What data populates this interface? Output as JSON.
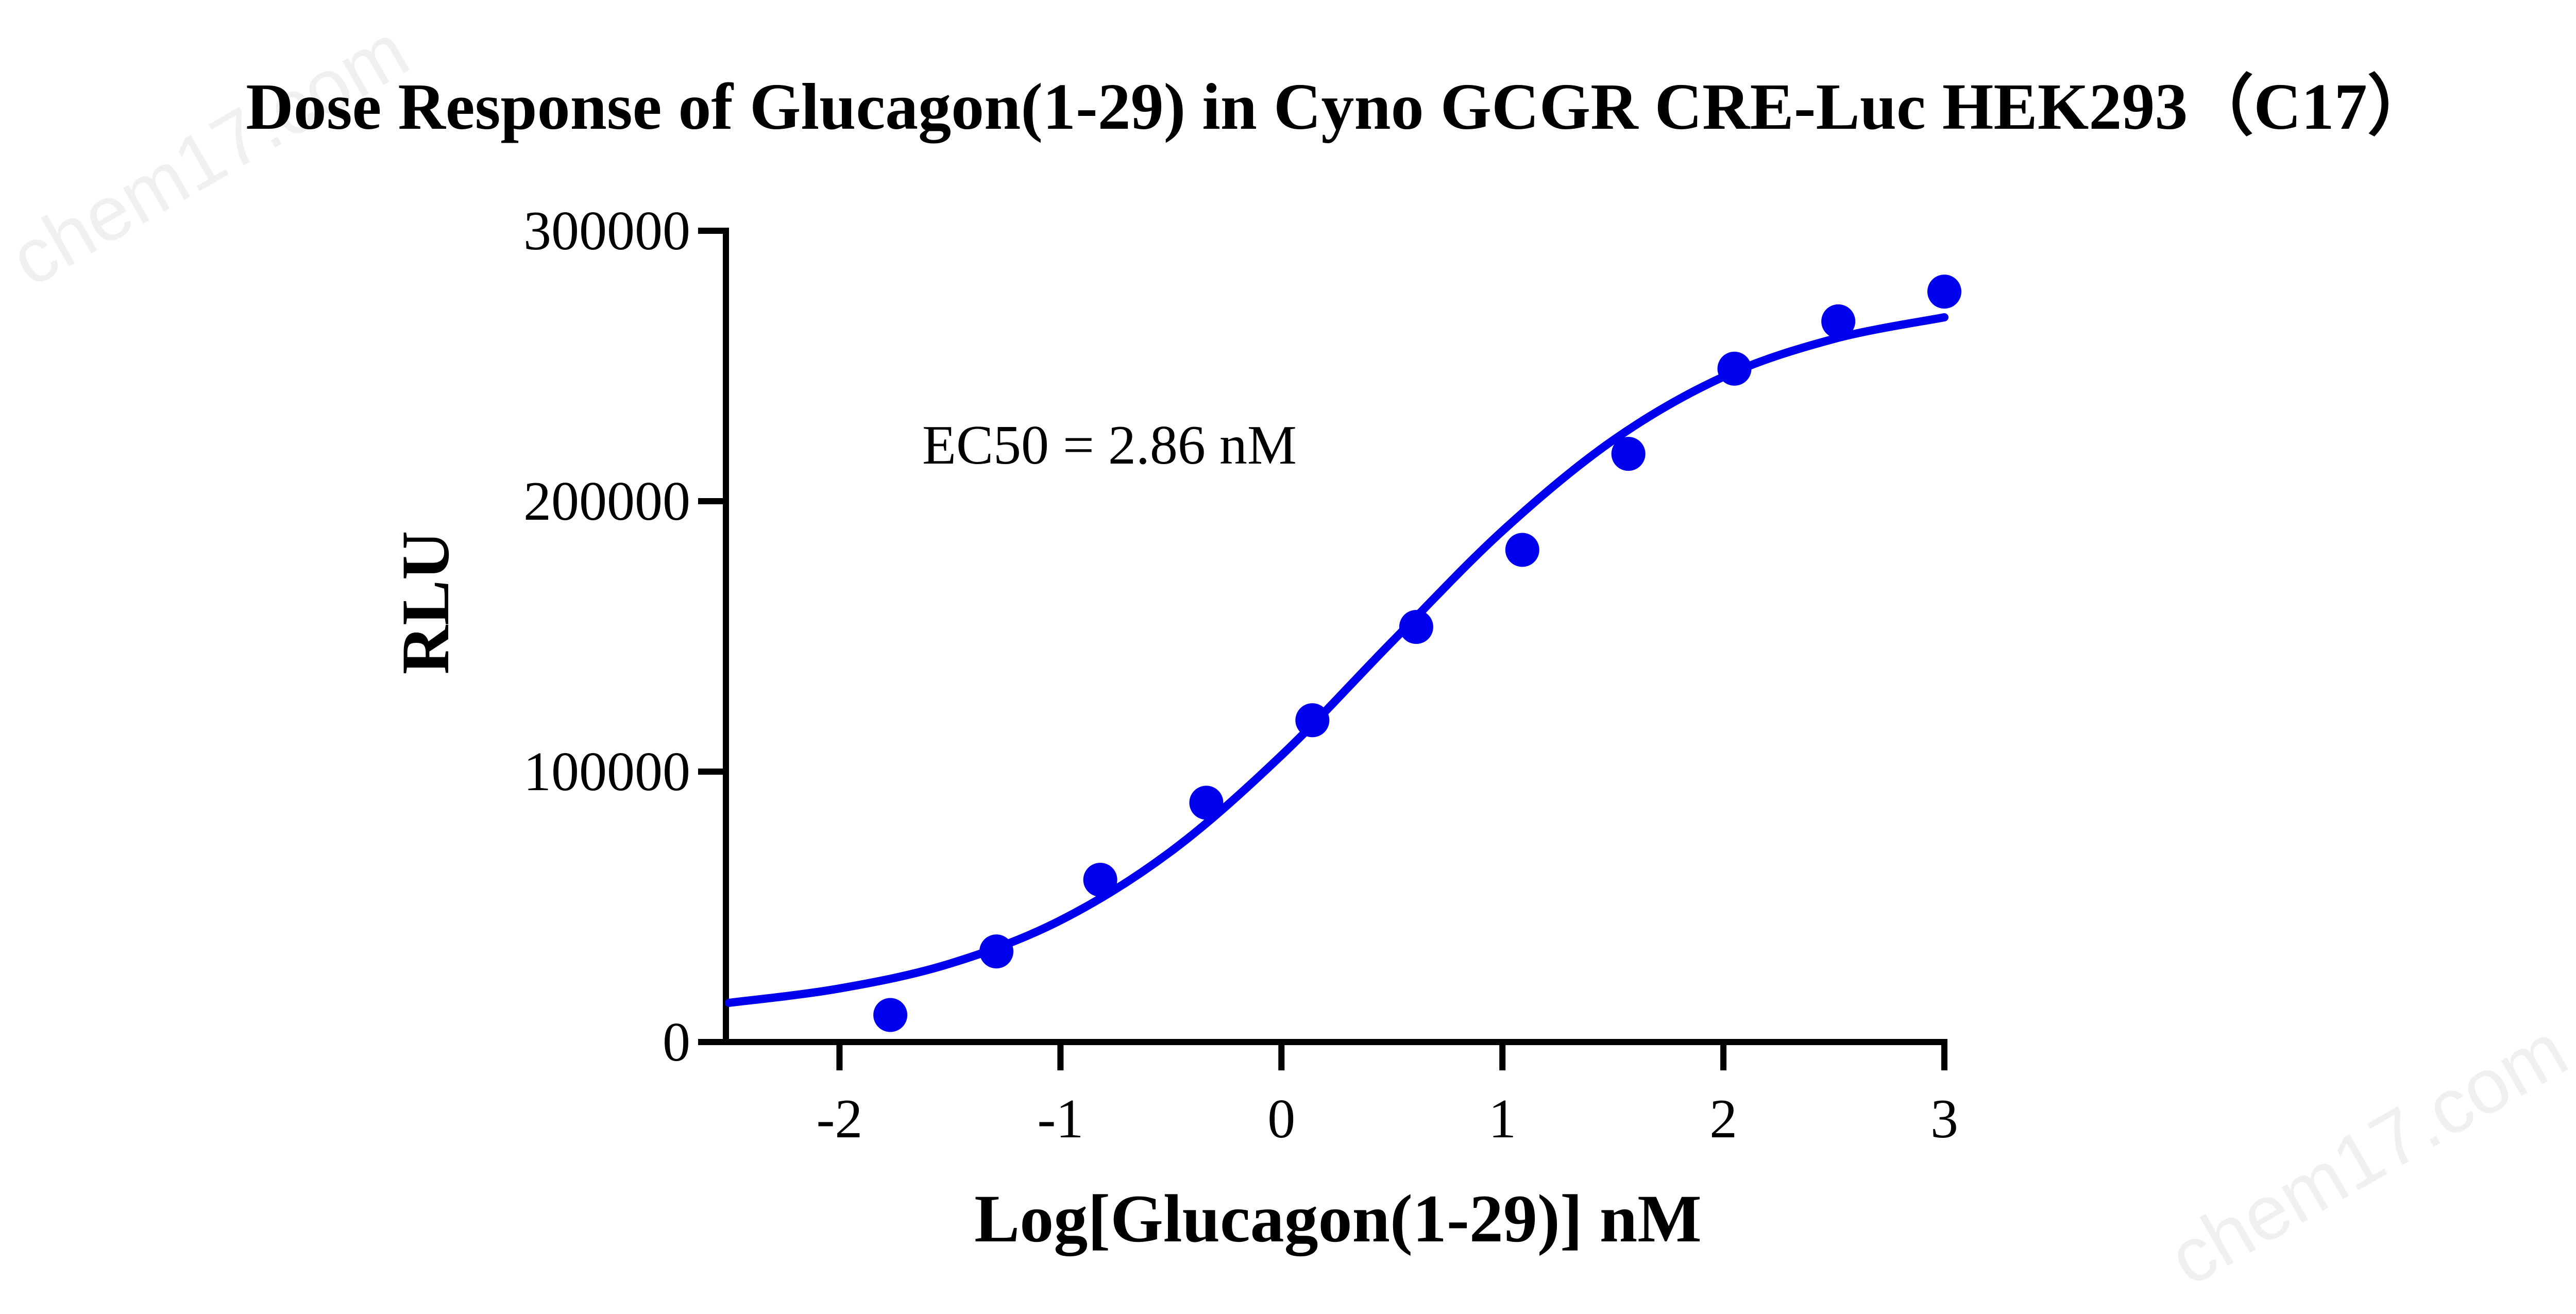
{
  "watermark": "chem17.com",
  "chart_data": {
    "type": "scatter",
    "title": "Dose Response of Glucagon(1-29) in Cyno GCGR CRE-Luc HEK293（C17）",
    "xlabel": "Log[Glucagon(1-29)] nM",
    "ylabel": "RLU",
    "xlim": [
      -2.5,
      3
    ],
    "ylim": [
      0,
      300000
    ],
    "xticks": [
      -2,
      -1,
      0,
      1,
      2,
      3
    ],
    "xtick_labels": [
      "-2",
      "-1",
      "0",
      "1",
      "2",
      "3"
    ],
    "yticks": [
      0,
      100000,
      200000,
      300000
    ],
    "ytick_labels": [
      "0",
      "100000",
      "200000",
      "300000"
    ],
    "grid": false,
    "color": "#0000ee",
    "annotation": "EC50 = 2.86 nM",
    "points": {
      "x": [
        -1.77,
        -1.29,
        -0.82,
        -0.34,
        0.14,
        0.61,
        1.09,
        1.57,
        2.05,
        2.52,
        3.0
      ],
      "y": [
        10000,
        33500,
        60000,
        88500,
        119000,
        153500,
        182000,
        217500,
        249000,
        266500,
        277500
      ]
    },
    "fit_curve": {
      "x": [
        -2.5,
        -2,
        -1.5,
        -1,
        -0.5,
        0,
        0.5,
        1,
        1.5,
        2,
        2.5,
        3
      ],
      "y": [
        14500,
        19800,
        29000,
        45000,
        70500,
        106000,
        148000,
        189000,
        222500,
        246000,
        260000,
        268000
      ]
    }
  }
}
